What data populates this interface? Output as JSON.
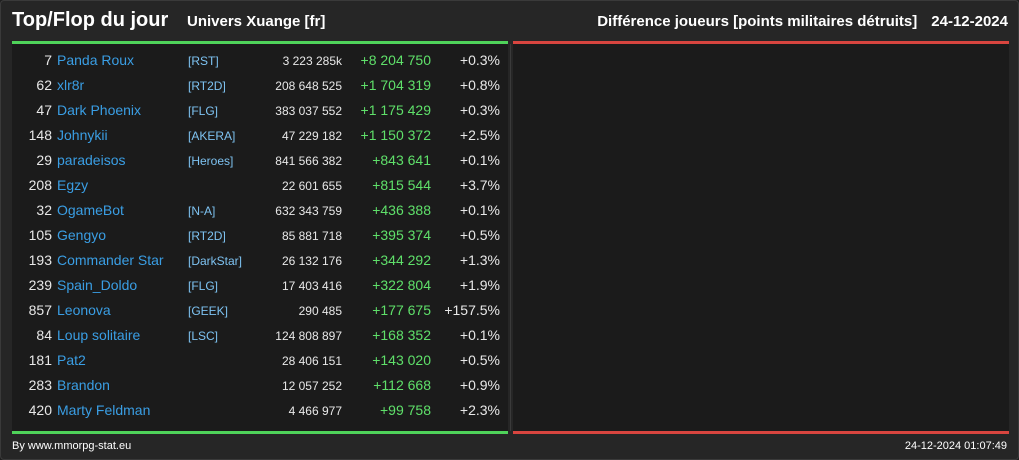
{
  "header": {
    "title": "Top/Flop du jour",
    "universe": "Univers Xuange [fr]",
    "subtitle": "Différence joueurs [points militaires détruits]",
    "date": "24-12-2024"
  },
  "colors": {
    "accent_top": "#4fd35a",
    "accent_flop": "#d8453f",
    "player_link": "#3a9ee4",
    "alliance_tag": "#7ec3f2",
    "positive_diff": "#5fe06a"
  },
  "top_players": [
    {
      "rank": "7",
      "name": "Panda Roux",
      "tag": "[RST]",
      "points": "3 223 285k",
      "diff": "+8 204 750",
      "pct": "+0.3%"
    },
    {
      "rank": "62",
      "name": "xlr8r",
      "tag": "[RT2D]",
      "points": "208 648 525",
      "diff": "+1 704 319",
      "pct": "+0.8%"
    },
    {
      "rank": "47",
      "name": "Dark Phoenix",
      "tag": "[FLG]",
      "points": "383 037 552",
      "diff": "+1 175 429",
      "pct": "+0.3%"
    },
    {
      "rank": "148",
      "name": "Johnykii",
      "tag": "[AKERA]",
      "points": "47 229 182",
      "diff": "+1 150 372",
      "pct": "+2.5%"
    },
    {
      "rank": "29",
      "name": "paradeisos",
      "tag": "[Heroes]",
      "points": "841 566 382",
      "diff": "+843 641",
      "pct": "+0.1%"
    },
    {
      "rank": "208",
      "name": "Egzy",
      "tag": "",
      "points": "22 601 655",
      "diff": "+815 544",
      "pct": "+3.7%"
    },
    {
      "rank": "32",
      "name": "OgameBot",
      "tag": "[N-A]",
      "points": "632 343 759",
      "diff": "+436 388",
      "pct": "+0.1%"
    },
    {
      "rank": "105",
      "name": "Gengyo",
      "tag": "[RT2D]",
      "points": "85 881 718",
      "diff": "+395 374",
      "pct": "+0.5%"
    },
    {
      "rank": "193",
      "name": "Commander Star",
      "tag": "[DarkStar]",
      "points": "26 132 176",
      "diff": "+344 292",
      "pct": "+1.3%"
    },
    {
      "rank": "239",
      "name": "Spain_Doldo",
      "tag": "[FLG]",
      "points": "17 403 416",
      "diff": "+322 804",
      "pct": "+1.9%"
    },
    {
      "rank": "857",
      "name": "Leonova",
      "tag": "[GEEK]",
      "points": "290 485",
      "diff": "+177 675",
      "pct": "+157.5%"
    },
    {
      "rank": "84",
      "name": "Loup solitaire",
      "tag": "[LSC]",
      "points": "124 808 897",
      "diff": "+168 352",
      "pct": "+0.1%"
    },
    {
      "rank": "181",
      "name": "Pat2",
      "tag": "",
      "points": "28 406 151",
      "diff": "+143 020",
      "pct": "+0.5%"
    },
    {
      "rank": "283",
      "name": "Brandon",
      "tag": "",
      "points": "12 057 252",
      "diff": "+112 668",
      "pct": "+0.9%"
    },
    {
      "rank": "420",
      "name": "Marty Feldman",
      "tag": "",
      "points": "4 466 977",
      "diff": "+99 758",
      "pct": "+2.3%"
    }
  ],
  "footer": {
    "credit": "By www.mmorpg-stat.eu",
    "timestamp": "24-12-2024 01:07:49"
  }
}
